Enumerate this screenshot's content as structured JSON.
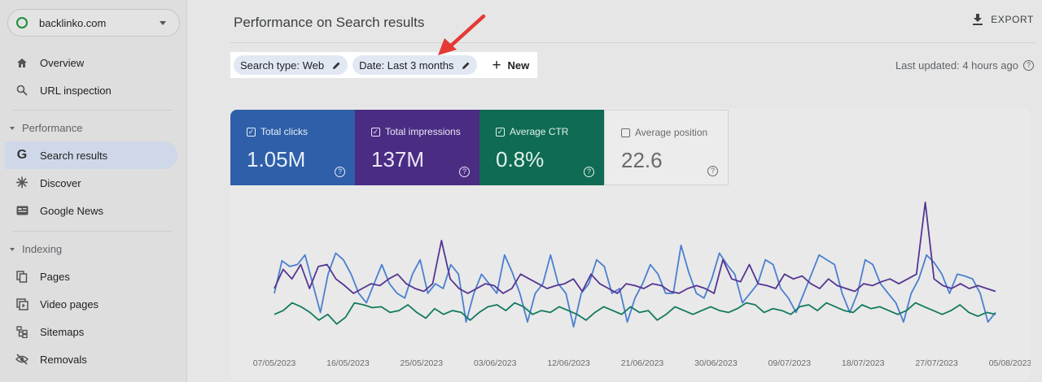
{
  "property": {
    "name": "backlinko.com"
  },
  "sidebar": {
    "top_items": [
      {
        "label": "Overview",
        "icon": "home-icon"
      },
      {
        "label": "URL inspection",
        "icon": "search-icon"
      }
    ],
    "performance_section": "Performance",
    "performance_items": [
      {
        "label": "Search results",
        "icon": "google-g-icon"
      },
      {
        "label": "Discover",
        "icon": "asterisk-icon"
      },
      {
        "label": "Google News",
        "icon": "news-icon"
      }
    ],
    "indexing_section": "Indexing",
    "indexing_items": [
      {
        "label": "Pages",
        "icon": "pages-icon"
      },
      {
        "label": "Video pages",
        "icon": "video-pages-icon"
      },
      {
        "label": "Sitemaps",
        "icon": "sitemap-icon"
      },
      {
        "label": "Removals",
        "icon": "eye-off-icon"
      }
    ]
  },
  "header": {
    "title": "Performance on Search results",
    "export_label": "EXPORT"
  },
  "filters": {
    "search_type": "Search type: Web",
    "date": "Date: Last 3 months",
    "new_label": "New"
  },
  "last_updated": "Last updated: 4 hours ago",
  "metrics": {
    "clicks": {
      "label": "Total clicks",
      "value": "1.05M",
      "checked": true,
      "color": "#2e5fa8"
    },
    "impressions": {
      "label": "Total impressions",
      "value": "137M",
      "checked": true,
      "color": "#4a2d83"
    },
    "ctr": {
      "label": "Average CTR",
      "value": "0.8%",
      "checked": true,
      "color": "#0f6b53"
    },
    "position": {
      "label": "Average position",
      "value": "22.6",
      "checked": false
    }
  },
  "chart_data": {
    "type": "line",
    "x_ticks": [
      "07/05/2023",
      "16/05/2023",
      "25/05/2023",
      "03/06/2023",
      "12/06/2023",
      "21/06/2023",
      "30/06/2023",
      "09/07/2023",
      "18/07/2023",
      "27/07/2023",
      "05/08/2023"
    ],
    "series": [
      {
        "name": "Total clicks",
        "color": "#4a7fd0",
        "values": [
          0.4,
          0.74,
          0.68,
          0.7,
          0.8,
          0.5,
          0.2,
          0.6,
          0.82,
          0.75,
          0.6,
          0.4,
          0.3,
          0.5,
          0.7,
          0.5,
          0.4,
          0.35,
          0.6,
          0.75,
          0.4,
          0.5,
          0.45,
          0.7,
          0.6,
          0.1,
          0.4,
          0.6,
          0.5,
          0.4,
          0.8,
          0.62,
          0.4,
          0.1,
          0.4,
          0.5,
          0.8,
          0.5,
          0.4,
          0.05,
          0.4,
          0.5,
          0.75,
          0.68,
          0.4,
          0.45,
          0.1,
          0.35,
          0.5,
          0.7,
          0.6,
          0.4,
          0.4,
          0.9,
          0.62,
          0.4,
          0.35,
          0.55,
          0.82,
          0.7,
          0.6,
          0.3,
          0.4,
          0.5,
          0.75,
          0.7,
          0.45,
          0.35,
          0.2,
          0.4,
          0.6,
          0.8,
          0.75,
          0.7,
          0.4,
          0.2,
          0.4,
          0.75,
          0.7,
          0.5,
          0.4,
          0.3,
          0.1,
          0.4,
          0.55,
          0.8,
          0.72,
          0.6,
          0.4,
          0.6,
          0.58,
          0.55,
          0.4,
          0.1,
          0.2
        ]
      },
      {
        "name": "Total impressions",
        "color": "#553592",
        "values": [
          0.45,
          0.65,
          0.55,
          0.7,
          0.45,
          0.68,
          0.7,
          0.55,
          0.48,
          0.4,
          0.45,
          0.5,
          0.48,
          0.55,
          0.6,
          0.5,
          0.45,
          0.42,
          0.5,
          0.95,
          0.55,
          0.45,
          0.4,
          0.45,
          0.5,
          0.48,
          0.4,
          0.45,
          0.6,
          0.55,
          0.5,
          0.45,
          0.48,
          0.5,
          0.55,
          0.42,
          0.6,
          0.5,
          0.45,
          0.4,
          0.5,
          0.48,
          0.45,
          0.5,
          0.48,
          0.42,
          0.4,
          0.45,
          0.48,
          0.45,
          0.4,
          0.75,
          0.55,
          0.52,
          0.7,
          0.5,
          0.48,
          0.45,
          0.6,
          0.55,
          0.58,
          0.5,
          0.45,
          0.55,
          0.48,
          0.45,
          0.42,
          0.5,
          0.48,
          0.52,
          0.55,
          0.5,
          0.55,
          0.6,
          1.35,
          0.55,
          0.48,
          0.45,
          0.5,
          0.45,
          0.48,
          0.45,
          0.42
        ]
      },
      {
        "name": "Average CTR",
        "color": "#137a5e",
        "values": [
          0.18,
          0.22,
          0.3,
          0.26,
          0.2,
          0.12,
          0.18,
          0.08,
          0.15,
          0.3,
          0.28,
          0.25,
          0.26,
          0.2,
          0.22,
          0.28,
          0.2,
          0.14,
          0.24,
          0.18,
          0.22,
          0.2,
          0.12,
          0.2,
          0.26,
          0.28,
          0.22,
          0.3,
          0.26,
          0.18,
          0.22,
          0.2,
          0.26,
          0.22,
          0.18,
          0.12,
          0.2,
          0.26,
          0.22,
          0.18,
          0.26,
          0.2,
          0.22,
          0.12,
          0.18,
          0.26,
          0.22,
          0.18,
          0.22,
          0.26,
          0.22,
          0.2,
          0.24,
          0.3,
          0.28,
          0.2,
          0.24,
          0.22,
          0.18,
          0.26,
          0.28,
          0.22,
          0.3,
          0.26,
          0.22,
          0.2,
          0.28,
          0.24,
          0.26,
          0.22,
          0.18,
          0.22,
          0.3,
          0.26,
          0.22,
          0.18,
          0.22,
          0.28,
          0.2,
          0.16,
          0.2,
          0.18
        ]
      }
    ],
    "ylim": [
      0,
      1.4
    ],
    "grid": false,
    "legend": "none"
  }
}
